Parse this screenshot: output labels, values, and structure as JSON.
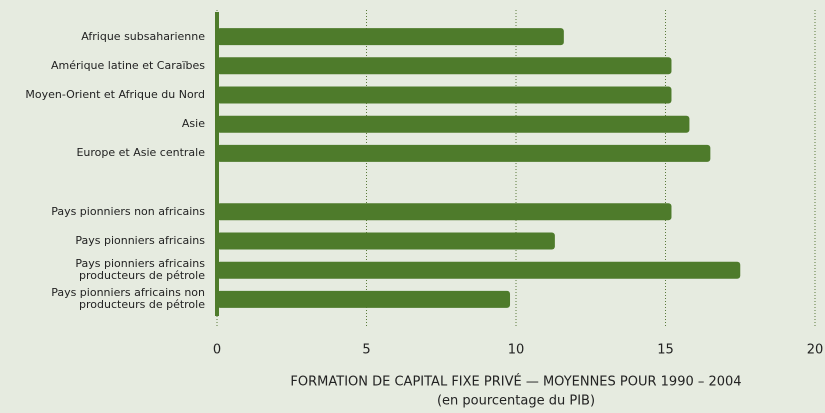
{
  "chart_data": {
    "type": "barh",
    "categories": [
      "Afrique subsaharienne",
      "Amérique latine et Caraïbes",
      "Moyen-Orient et Afrique du Nord",
      "Asie",
      "Europe et Asie centrale",
      null,
      "Pays pionniers non africains",
      "Pays pionniers africains",
      "Pays pionniers africains\nproducteurs de pétrole",
      "Pays pionniers africains non\nproducteurs de pétrole"
    ],
    "values": [
      11.6,
      15.2,
      15.2,
      15.8,
      16.5,
      null,
      15.2,
      11.3,
      17.5,
      9.8
    ],
    "color": "#4e7b2b",
    "xlim": [
      0,
      20
    ],
    "xticks": [
      0,
      5,
      10,
      15,
      20
    ],
    "grid": true,
    "x_label": "FORMATION DE CAPITAL FIXE PRIVÉ — MOYENNES POUR 1990 – 2004",
    "x_label_note": "(en pourcentage du PIB)"
  }
}
